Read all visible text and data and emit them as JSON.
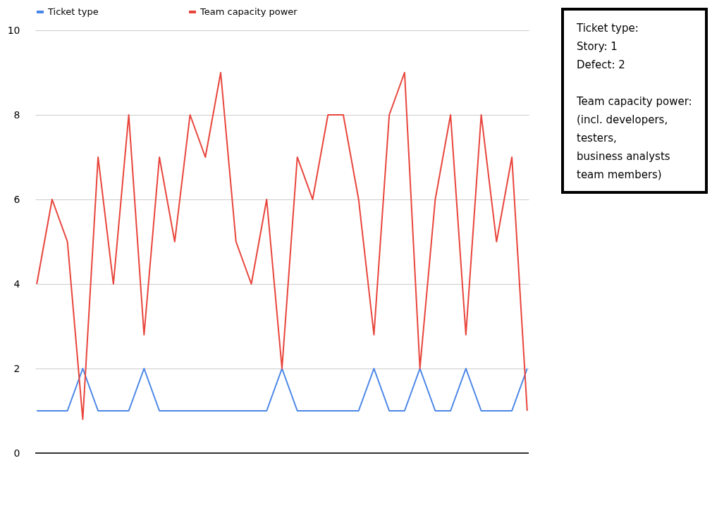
{
  "chart_data": {
    "type": "line",
    "categories": [
      null,
      null,
      null,
      null,
      null,
      null,
      null,
      null,
      null,
      null,
      null,
      null,
      null,
      null,
      null,
      null,
      null,
      null,
      null,
      null,
      null,
      null,
      null,
      null,
      null,
      null,
      null,
      null,
      null,
      null,
      null,
      null,
      null
    ],
    "series": [
      {
        "name": "Ticket type",
        "color": "#4a86e8",
        "values": [
          1,
          1,
          1,
          2,
          1,
          1,
          1,
          2,
          1,
          1,
          1,
          1,
          1,
          1,
          1,
          1,
          2,
          1,
          1,
          1,
          1,
          1,
          2,
          1,
          1,
          2,
          1,
          1,
          2,
          1,
          1,
          1,
          2
        ]
      },
      {
        "name": "Team capacity power",
        "color": "#e8453c",
        "values": [
          4,
          6,
          5,
          0.8,
          7,
          4,
          8,
          2.8,
          7,
          5,
          8,
          7,
          9,
          5,
          4,
          6,
          2,
          7,
          6,
          8,
          8,
          6,
          2.8,
          8,
          9,
          2,
          6,
          8,
          2.8,
          8,
          5,
          7,
          1
        ]
      }
    ],
    "ylim": [
      0,
      10
    ],
    "yticks": [
      0,
      2,
      4,
      6,
      8,
      10
    ],
    "grid": "y",
    "legend": "top left",
    "marker": "none",
    "line_style": "solid",
    "annotations": [
      "Ticket type:\nStory: 1\nDefect: 2",
      "Team capacity power:\n(incl. developers,\ntesters,\nbusiness analysts\nteam members)"
    ]
  }
}
